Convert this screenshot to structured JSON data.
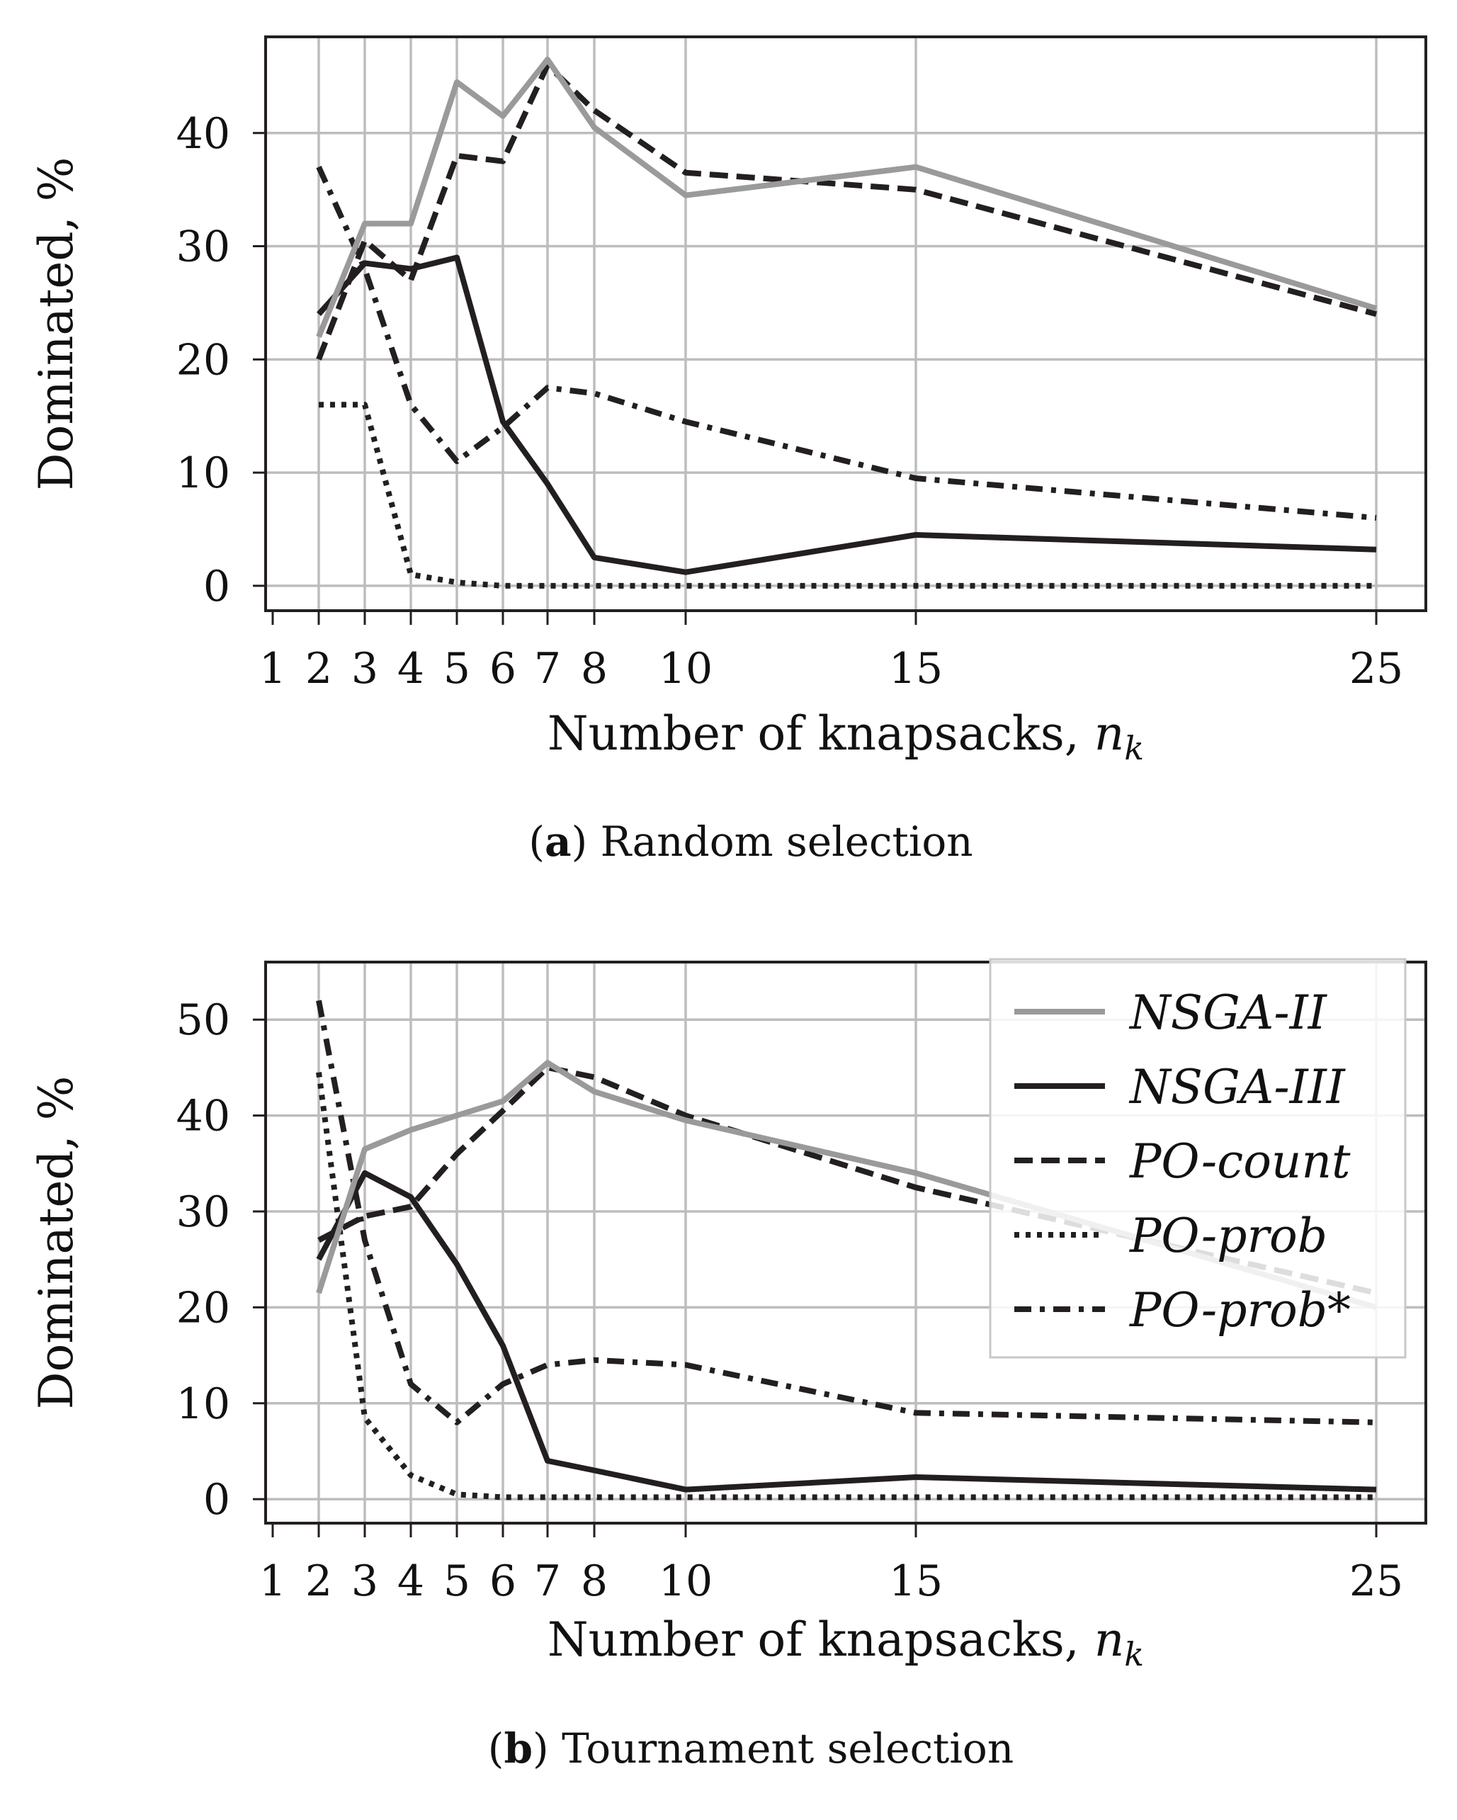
{
  "chart_data": [
    {
      "id": "a",
      "type": "line",
      "caption_letter": "a",
      "caption_text": "Random selection",
      "ylabel": "Dominated, %",
      "xlabel": "Number of knapsacks, ",
      "xlabel_var": "n",
      "xlabel_sub": "k",
      "xticks": [
        1,
        2,
        3,
        4,
        5,
        6,
        7,
        8,
        10,
        15,
        25
      ],
      "yticks": [
        0,
        10,
        20,
        30,
        40
      ],
      "ylim": [
        -2.2,
        48.5
      ],
      "grid": true,
      "legend": false,
      "x": [
        2,
        3,
        4,
        5,
        6,
        7,
        8,
        10,
        15,
        25
      ],
      "series": [
        {
          "name": "NSGA-II",
          "style": "solid-gray",
          "values": [
            22,
            32,
            32,
            44.5,
            41.5,
            46.5,
            40.5,
            34.5,
            37,
            24.5
          ]
        },
        {
          "name": "NSGA-III",
          "style": "solid-black",
          "values": [
            24,
            28.5,
            28,
            29,
            14.5,
            9,
            2.5,
            1.2,
            4.5,
            3.2
          ]
        },
        {
          "name": "PO-count",
          "style": "dashed",
          "values": [
            20,
            30.5,
            27,
            38,
            37.5,
            46,
            42,
            36.5,
            35,
            24
          ]
        },
        {
          "name": "PO-prob",
          "style": "dotted",
          "values": [
            16,
            16,
            1,
            0.3,
            0,
            0,
            0,
            0,
            0,
            0
          ]
        },
        {
          "name": "PO-prob*",
          "style": "dashdot",
          "values": [
            37,
            28,
            16,
            11,
            14,
            17.5,
            17,
            14.5,
            9.5,
            6
          ]
        }
      ]
    },
    {
      "id": "b",
      "type": "line",
      "caption_letter": "b",
      "caption_text": "Tournament selection",
      "ylabel": "Dominated, %",
      "xlabel": "Number of knapsacks, ",
      "xlabel_var": "n",
      "xlabel_sub": "k",
      "xticks": [
        1,
        2,
        3,
        4,
        5,
        6,
        7,
        8,
        10,
        15,
        25
      ],
      "yticks": [
        0,
        10,
        20,
        30,
        40,
        50
      ],
      "ylim": [
        -2.5,
        56
      ],
      "grid": true,
      "legend": true,
      "legend_position": "top-right",
      "x": [
        2,
        3,
        4,
        5,
        6,
        7,
        8,
        10,
        15,
        25
      ],
      "series": [
        {
          "name": "NSGA-II",
          "style": "solid-gray",
          "values": [
            21.5,
            36.5,
            38.5,
            40,
            41.5,
            45.5,
            42.5,
            39.5,
            34,
            20
          ]
        },
        {
          "name": "NSGA-III",
          "style": "solid-black",
          "values": [
            25,
            34,
            31.5,
            24.5,
            16,
            4,
            3,
            1,
            2.3,
            1
          ]
        },
        {
          "name": "PO-count",
          "style": "dashed",
          "values": [
            27,
            29.5,
            30.5,
            36,
            40.5,
            45,
            44,
            40,
            32.5,
            21.5
          ]
        },
        {
          "name": "PO-prob",
          "style": "dotted",
          "values": [
            44.5,
            8.5,
            2.5,
            0.5,
            0.2,
            0.2,
            0.2,
            0.2,
            0.2,
            0.2
          ]
        },
        {
          "name": "PO-prob*",
          "style": "dashdot",
          "values": [
            52,
            27,
            12,
            8,
            12,
            14,
            14.5,
            14,
            9,
            8
          ]
        }
      ]
    }
  ]
}
